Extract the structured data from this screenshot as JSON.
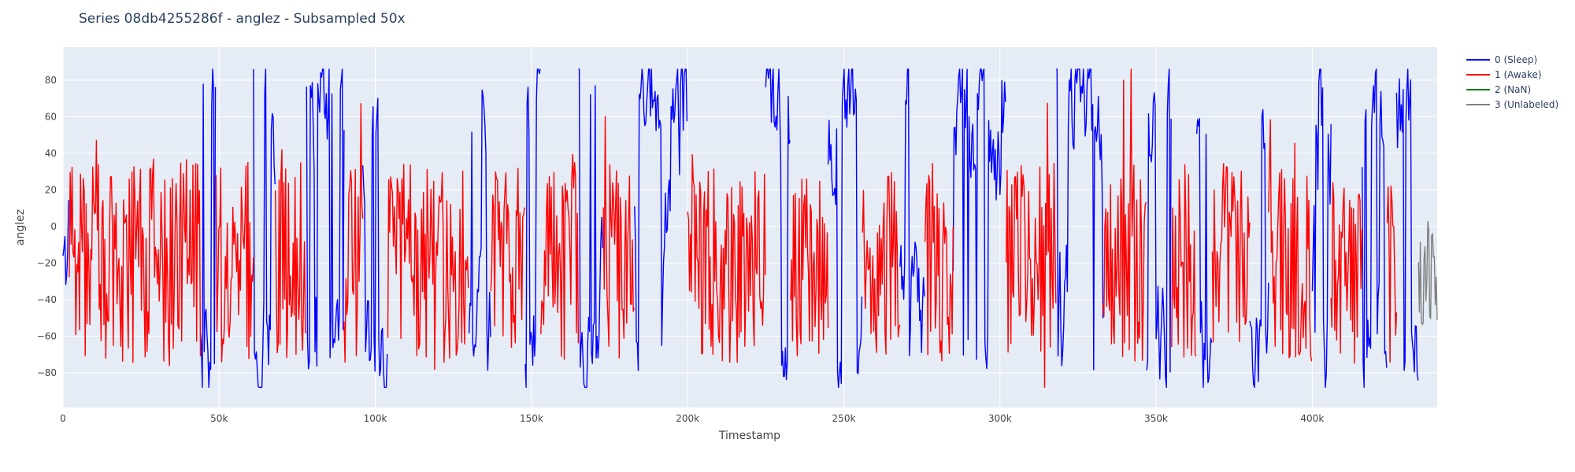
{
  "chart_data": {
    "type": "line",
    "title": "Series 08db4255286f - anglez - Subsampled 50x",
    "xlabel": "Timestamp",
    "ylabel": "anglez",
    "xlim": [
      0,
      440000
    ],
    "ylim": [
      -99,
      98
    ],
    "x_ticks": [
      0,
      50000,
      100000,
      150000,
      200000,
      250000,
      300000,
      350000,
      400000
    ],
    "x_tick_labels": [
      "0",
      "50k",
      "100k",
      "150k",
      "200k",
      "250k",
      "300k",
      "350k",
      "400k"
    ],
    "y_ticks": [
      -80,
      -60,
      -40,
      -20,
      0,
      20,
      40,
      60,
      80
    ],
    "y_tick_labels": [
      "−80",
      "−60",
      "−40",
      "−20",
      "0",
      "20",
      "40",
      "60",
      "80"
    ],
    "grid": true,
    "legend_position": "top-right",
    "subsample_step": 50,
    "series": [
      {
        "name": "0 (Sleep)",
        "color": "#0000ff",
        "segments": [
          [
            0,
            2000
          ],
          [
            44000,
            49000
          ],
          [
            61000,
            68000
          ],
          [
            78000,
            90000
          ],
          [
            96000,
            104000
          ],
          [
            130000,
            137000
          ],
          [
            148000,
            153000
          ],
          [
            165000,
            173000
          ],
          [
            183000,
            200000
          ],
          [
            225000,
            233000
          ],
          [
            245000,
            256000
          ],
          [
            268000,
            276000
          ],
          [
            285000,
            302000
          ],
          [
            318000,
            333000
          ],
          [
            347000,
            355000
          ],
          [
            363000,
            368000
          ],
          [
            380000,
            386000
          ],
          [
            400000,
            406000
          ],
          [
            416000,
            424000
          ],
          [
            427000,
            434000
          ]
        ]
      },
      {
        "name": "1 (Awake)",
        "color": "#ff0000",
        "segments": [
          [
            2000,
            44000
          ],
          [
            49000,
            61000
          ],
          [
            68000,
            78000
          ],
          [
            90000,
            96000
          ],
          [
            104000,
            130000
          ],
          [
            137000,
            148000
          ],
          [
            153000,
            165000
          ],
          [
            173000,
            183000
          ],
          [
            200000,
            225000
          ],
          [
            233000,
            245000
          ],
          [
            256000,
            268000
          ],
          [
            276000,
            285000
          ],
          [
            302000,
            318000
          ],
          [
            333000,
            347000
          ],
          [
            355000,
            363000
          ],
          [
            368000,
            380000
          ],
          [
            386000,
            400000
          ],
          [
            406000,
            416000
          ],
          [
            424000,
            427000
          ]
        ]
      },
      {
        "name": "2 (NaN)",
        "color": "#008000",
        "segments": []
      },
      {
        "name": "3 (Unlabeled)",
        "color": "#808080",
        "segments": [
          [
            434000,
            440000
          ]
        ]
      }
    ]
  }
}
